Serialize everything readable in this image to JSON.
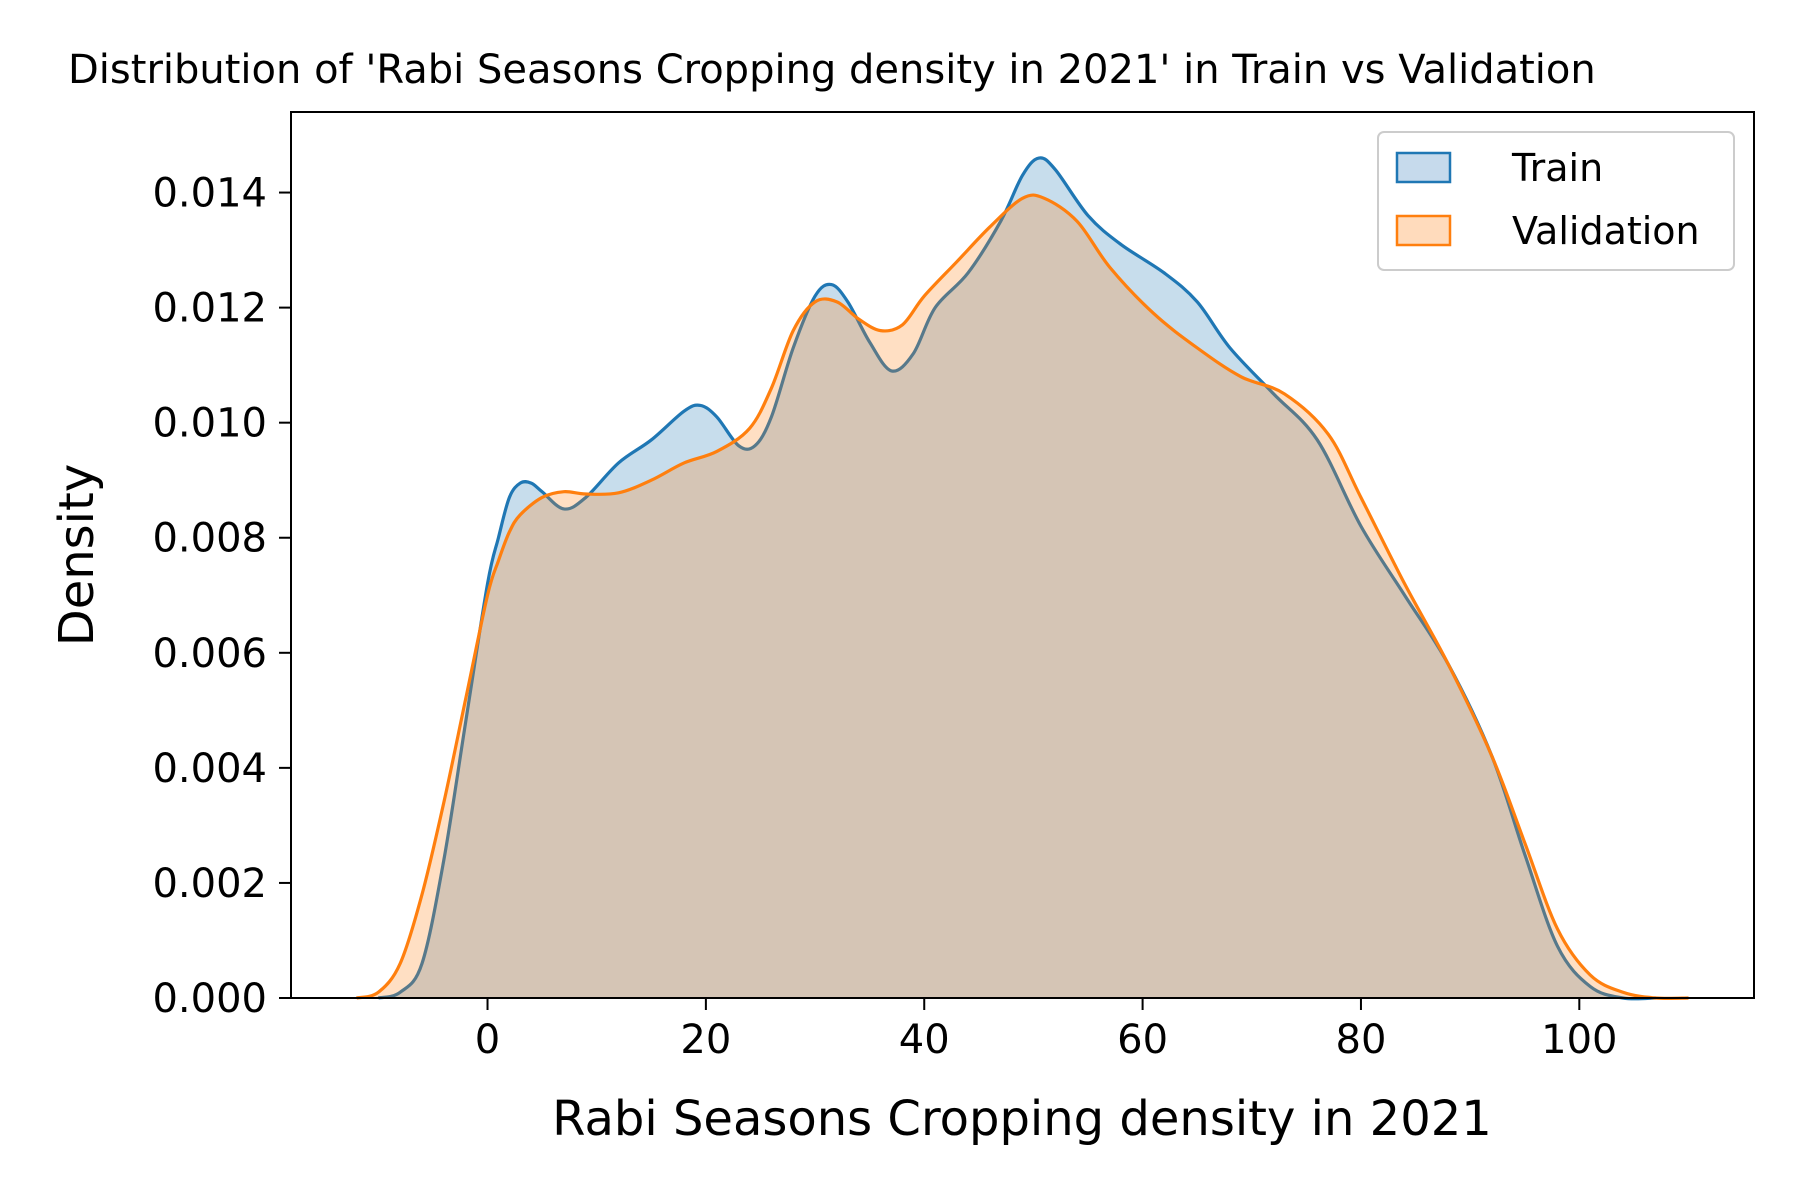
{
  "chart_data": {
    "type": "area",
    "title": "Distribution of 'Rabi Seasons Cropping density in 2021' in Train vs Validation",
    "xlabel": "Rabi Seasons Cropping density in 2021",
    "ylabel": "Density",
    "xlim": [
      -18,
      116
    ],
    "ylim": [
      0,
      0.0154
    ],
    "xticks": [
      0,
      20,
      40,
      60,
      80,
      100
    ],
    "xtick_labels": [
      "0",
      "20",
      "40",
      "60",
      "80",
      "100"
    ],
    "yticks": [
      0,
      0.002,
      0.004,
      0.006,
      0.008,
      0.01,
      0.012,
      0.014
    ],
    "ytick_labels": [
      "0.000",
      "0.002",
      "0.004",
      "0.006",
      "0.008",
      "0.010",
      "0.012",
      "0.014"
    ],
    "grid": false,
    "legend_position": "top-right",
    "series": [
      {
        "name": "Train",
        "color": "#1f77b4",
        "fill": "#c6daec",
        "x": [
          -10,
          -8,
          -6,
          -4,
          -2,
          0,
          1,
          2,
          3,
          4,
          5,
          7,
          9,
          12,
          15,
          18,
          19.5,
          21,
          23,
          24.5,
          26,
          28,
          30,
          31.5,
          33,
          35,
          37,
          39,
          41,
          44,
          47,
          49,
          50.5,
          52,
          55,
          58,
          62,
          65,
          68,
          72,
          76,
          80,
          84,
          88,
          92,
          95,
          98,
          101,
          104,
          107
        ],
        "y": [
          0,
          0.0001,
          0.0006,
          0.0024,
          0.0048,
          0.0072,
          0.008,
          0.0087,
          0.00895,
          0.00895,
          0.0088,
          0.0085,
          0.0087,
          0.0093,
          0.0097,
          0.0102,
          0.0103,
          0.0101,
          0.0096,
          0.0096,
          0.0101,
          0.0113,
          0.0122,
          0.0124,
          0.0121,
          0.0114,
          0.0109,
          0.0112,
          0.012,
          0.0126,
          0.0135,
          0.0143,
          0.0146,
          0.0144,
          0.0136,
          0.0131,
          0.0126,
          0.0121,
          0.0113,
          0.0105,
          0.0097,
          0.0082,
          0.007,
          0.0058,
          0.0042,
          0.0025,
          0.0009,
          0.0002,
          0,
          0
        ]
      },
      {
        "name": "Validation",
        "color": "#ff7f0e",
        "fill": "#ffdbbc",
        "x": [
          -12,
          -10,
          -8,
          -6,
          -4,
          -2,
          0,
          1,
          2,
          3,
          5,
          7,
          9,
          12,
          15,
          18,
          21,
          24,
          26,
          28,
          30,
          32,
          34,
          36,
          38,
          40,
          43,
          46,
          49,
          51,
          54,
          57,
          61,
          65,
          69,
          73,
          77,
          80,
          84,
          88,
          92,
          95,
          98,
          101,
          104,
          107,
          110
        ],
        "y": [
          0,
          0.0001,
          0.0006,
          0.0018,
          0.0034,
          0.0052,
          0.007,
          0.0076,
          0.0081,
          0.0084,
          0.0087,
          0.0088,
          0.00876,
          0.00878,
          0.009,
          0.0093,
          0.0095,
          0.0099,
          0.0106,
          0.0116,
          0.0121,
          0.0121,
          0.0118,
          0.0116,
          0.0117,
          0.0122,
          0.0128,
          0.0134,
          0.0139,
          0.0139,
          0.0135,
          0.0127,
          0.0119,
          0.0113,
          0.0108,
          0.0105,
          0.0098,
          0.0087,
          0.0072,
          0.0058,
          0.0042,
          0.0027,
          0.0012,
          0.0004,
          0.0001,
          0,
          0
        ]
      }
    ]
  }
}
